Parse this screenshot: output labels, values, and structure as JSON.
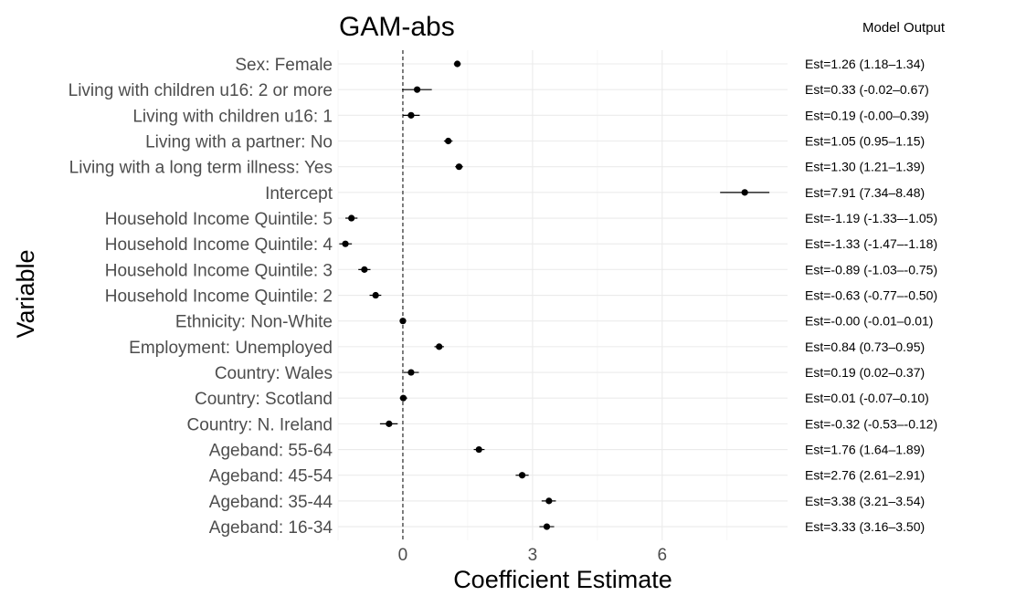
{
  "chart_data": {
    "type": "forest",
    "title": "GAM-abs",
    "xlabel": "Coefficient Estimate",
    "ylabel": "Variable",
    "side_header": "Model Output",
    "xlim": [
      -1.5,
      8.9
    ],
    "x_ticks": [
      0,
      3,
      6
    ],
    "x_tick_labels": [
      "0",
      "3",
      "6"
    ],
    "reference_line": 0,
    "grid": true,
    "rows": [
      {
        "variable": "Sex: Female",
        "est": 1.26,
        "lo": 1.18,
        "hi": 1.34,
        "label": "Est=1.26 (1.18–1.34)"
      },
      {
        "variable": "Living with children u16: 2 or more",
        "est": 0.33,
        "lo": -0.02,
        "hi": 0.67,
        "label": "Est=0.33 (-0.02–0.67)"
      },
      {
        "variable": "Living with children u16: 1",
        "est": 0.19,
        "lo": 0.0,
        "hi": 0.39,
        "label": "Est=0.19 (-0.00–0.39)"
      },
      {
        "variable": "Living with a partner: No",
        "est": 1.05,
        "lo": 0.95,
        "hi": 1.15,
        "label": "Est=1.05 (0.95–1.15)"
      },
      {
        "variable": "Living with a long term illness: Yes",
        "est": 1.3,
        "lo": 1.21,
        "hi": 1.39,
        "label": "Est=1.30 (1.21–1.39)"
      },
      {
        "variable": "Intercept",
        "est": 7.91,
        "lo": 7.34,
        "hi": 8.48,
        "label": "Est=7.91 (7.34–8.48)"
      },
      {
        "variable": "Household Income Quintile: 5",
        "est": -1.19,
        "lo": -1.33,
        "hi": -1.05,
        "label": "Est=-1.19 (-1.33–-1.05)"
      },
      {
        "variable": "Household Income Quintile: 4",
        "est": -1.33,
        "lo": -1.47,
        "hi": -1.18,
        "label": "Est=-1.33 (-1.47–-1.18)"
      },
      {
        "variable": "Household Income Quintile: 3",
        "est": -0.89,
        "lo": -1.03,
        "hi": -0.75,
        "label": "Est=-0.89 (-1.03–-0.75)"
      },
      {
        "variable": "Household Income Quintile: 2",
        "est": -0.63,
        "lo": -0.77,
        "hi": -0.5,
        "label": "Est=-0.63 (-0.77–-0.50)"
      },
      {
        "variable": "Ethnicity: Non-White",
        "est": 0.0,
        "lo": -0.01,
        "hi": 0.01,
        "label": "Est=-0.00 (-0.01–0.01)"
      },
      {
        "variable": "Employment: Unemployed",
        "est": 0.84,
        "lo": 0.73,
        "hi": 0.95,
        "label": "Est=0.84 (0.73–0.95)"
      },
      {
        "variable": "Country: Wales",
        "est": 0.19,
        "lo": 0.02,
        "hi": 0.37,
        "label": "Est=0.19 (0.02–0.37)"
      },
      {
        "variable": "Country: Scotland",
        "est": 0.01,
        "lo": -0.07,
        "hi": 0.1,
        "label": "Est=0.01 (-0.07–0.10)"
      },
      {
        "variable": "Country: N. Ireland",
        "est": -0.32,
        "lo": -0.53,
        "hi": -0.12,
        "label": "Est=-0.32 (-0.53–-0.12)"
      },
      {
        "variable": "Ageband: 55-64",
        "est": 1.76,
        "lo": 1.64,
        "hi": 1.89,
        "label": "Est=1.76 (1.64–1.89)"
      },
      {
        "variable": "Ageband: 45-54",
        "est": 2.76,
        "lo": 2.61,
        "hi": 2.91,
        "label": "Est=2.76 (2.61–2.91)"
      },
      {
        "variable": "Ageband: 35-44",
        "est": 3.38,
        "lo": 3.21,
        "hi": 3.54,
        "label": "Est=3.38 (3.21–3.54)"
      },
      {
        "variable": "Ageband: 16-34",
        "est": 3.33,
        "lo": 3.16,
        "hi": 3.5,
        "label": "Est=3.33 (3.16–3.50)"
      }
    ]
  }
}
